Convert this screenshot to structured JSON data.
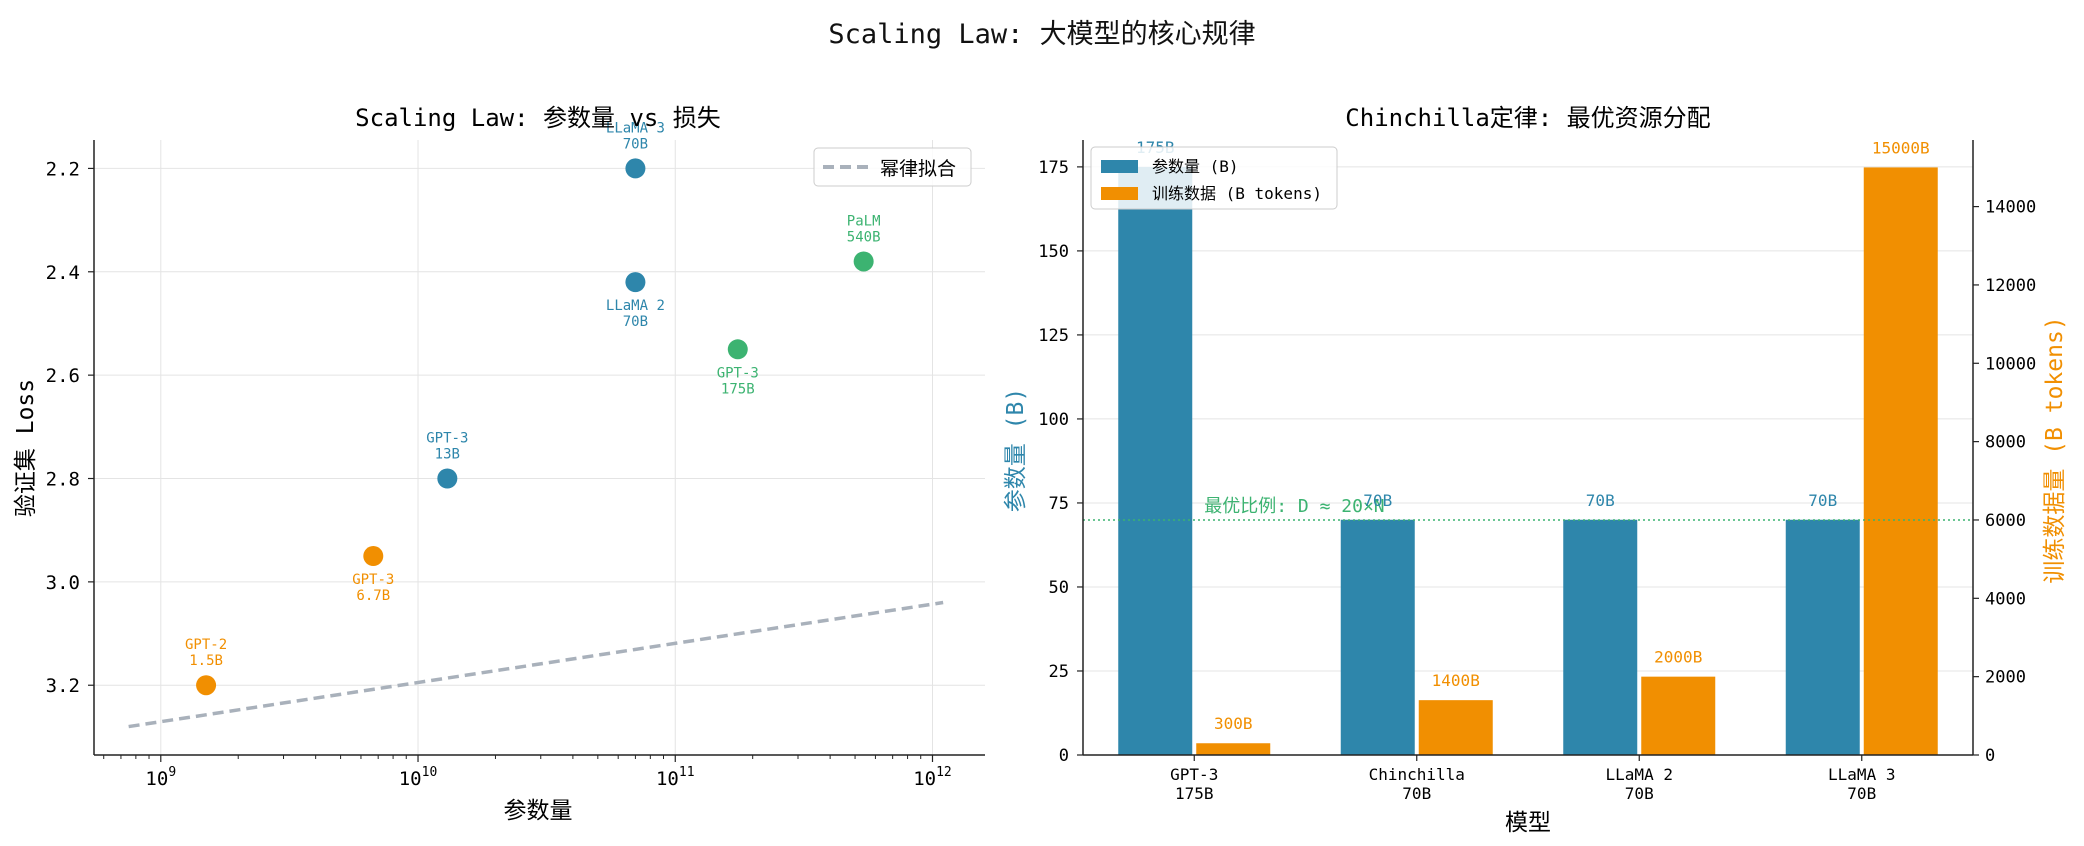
{
  "figure": {
    "title": "Scaling Law: 大模型的核心规律"
  },
  "colors": {
    "blue": "#2e86ab",
    "orange": "#f18f01",
    "green": "#3cb371",
    "fit": "#a9b1bb",
    "grid": "#e4e4e4"
  },
  "chart_data": [
    {
      "type": "scatter",
      "title": "Scaling Law: 参数量 vs 损失",
      "xlabel": "参数量",
      "ylabel": "验证集 Loss",
      "xscale": "log",
      "xlim": [
        550000000.0,
        1600000000000.0
      ],
      "ylim": [
        3.335,
        2.145
      ],
      "y_inverted": true,
      "xticks": [
        {
          "value": 1000000000.0,
          "base": "10",
          "exp": "9"
        },
        {
          "value": 10000000000.0,
          "base": "10",
          "exp": "10"
        },
        {
          "value": 100000000000.0,
          "base": "10",
          "exp": "11"
        },
        {
          "value": 1000000000000.0,
          "base": "10",
          "exp": "12"
        }
      ],
      "yticks": [
        2.2,
        2.4,
        2.6,
        2.8,
        3.0,
        3.2
      ],
      "ytick_labels": [
        "2.2",
        "2.4",
        "2.6",
        "2.8",
        "3.0",
        "3.2"
      ],
      "grid": true,
      "legend": {
        "position": "top-right",
        "entries": [
          {
            "label": "幂律拟合",
            "style": "dashed",
            "color": "#a9b1bb"
          }
        ]
      },
      "fit_line": {
        "x": [
          750000000.0,
          1100000000000.0
        ],
        "y": [
          3.28,
          3.04
        ]
      },
      "points": [
        {
          "x": 1500000000.0,
          "y": 3.2,
          "color": "#f18f01",
          "label_lines": [
            "GPT-2",
            "1.5B"
          ],
          "label_pos": "above"
        },
        {
          "x": 6700000000.0,
          "y": 2.95,
          "color": "#f18f01",
          "label_lines": [
            "GPT-3",
            "6.7B"
          ],
          "label_pos": "below"
        },
        {
          "x": 13000000000.0,
          "y": 2.8,
          "color": "#2e86ab",
          "label_lines": [
            "GPT-3",
            "13B"
          ],
          "label_pos": "above"
        },
        {
          "x": 70000000000.0,
          "y": 2.42,
          "color": "#2e86ab",
          "label_lines": [
            "LLaMA 2",
            "70B"
          ],
          "label_pos": "below"
        },
        {
          "x": 70000000000.0,
          "y": 2.2,
          "color": "#2e86ab",
          "label_lines": [
            "LLaMA 3",
            "70B"
          ],
          "label_pos": "above"
        },
        {
          "x": 175000000000.0,
          "y": 2.55,
          "color": "#3cb371",
          "label_lines": [
            "GPT-3",
            "175B"
          ],
          "label_pos": "below"
        },
        {
          "x": 540000000000.0,
          "y": 2.38,
          "color": "#3cb371",
          "label_lines": [
            "PaLM",
            "540B"
          ],
          "label_pos": "above"
        }
      ]
    },
    {
      "type": "bar",
      "title": "Chinchilla定律: 最优资源分配",
      "xlabel": "模型",
      "ylabel": "参数量 (B)",
      "ylabel_right": "训练数据量 (B tokens)",
      "categories": [
        {
          "line1": "GPT-3",
          "line2": "175B"
        },
        {
          "line1": "Chinchilla",
          "line2": "70B"
        },
        {
          "line1": "LLaMA 2",
          "line2": "70B"
        },
        {
          "line1": "LLaMA 3",
          "line2": "70B"
        }
      ],
      "series": [
        {
          "name": "参数量 (B)",
          "axis": "left",
          "color": "#2e86ab",
          "values": [
            175,
            70,
            70,
            70
          ],
          "value_labels": [
            "175B",
            "70B",
            "70B",
            "70B"
          ]
        },
        {
          "name": "训练数据 (B tokens)",
          "axis": "right",
          "color": "#f18f01",
          "values": [
            300,
            1400,
            2000,
            15000
          ],
          "value_labels": [
            "300B",
            "1400B",
            "2000B",
            "15000B"
          ]
        }
      ],
      "ylim_left": [
        0,
        183
      ],
      "ylim_right": [
        0,
        15700
      ],
      "yticks_left": [
        0,
        25,
        50,
        75,
        100,
        125,
        150,
        175
      ],
      "yticks_right": [
        0,
        2000,
        4000,
        6000,
        8000,
        10000,
        12000,
        14000
      ],
      "grid": true,
      "legend": {
        "position": "top-left"
      },
      "reference_line": {
        "axis": "right",
        "y": 6000,
        "color": "#3cb371",
        "style": "dotted",
        "label": "最优比例: D ≈ 20×N"
      }
    }
  ]
}
